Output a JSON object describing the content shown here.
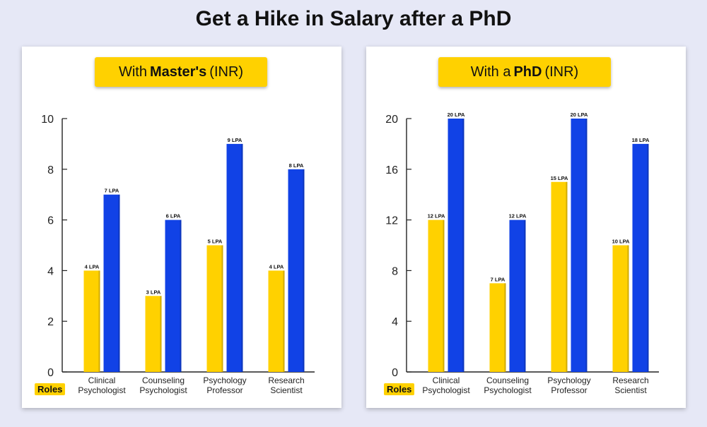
{
  "title": "Get a Hike in Salary after a PhD",
  "colors": {
    "masters": "#ffd100",
    "phd": "#1142e6",
    "badge": "#ffd100"
  },
  "chart_data": [
    {
      "type": "bar",
      "title_prefix": "With",
      "title_bold": "Master's",
      "title_suffix": "(INR)",
      "roles_label": "Roles",
      "categories": [
        [
          "Clinical",
          "Psychologist"
        ],
        [
          "Counseling",
          "Psychologist"
        ],
        [
          "Psychology",
          "Professor"
        ],
        [
          "Research",
          "Scientist"
        ]
      ],
      "series": [
        {
          "values": [
            4,
            3,
            5,
            4
          ],
          "labels": [
            "4 LPA",
            "3 LPA",
            "5 LPA",
            "4 LPA"
          ],
          "color": "#ffd100"
        },
        {
          "values": [
            7,
            6,
            9,
            8
          ],
          "labels": [
            "7 LPA",
            "6 LPA",
            "9 LPA",
            "8 LPA"
          ],
          "color": "#1142e6"
        }
      ],
      "ylim": [
        0,
        10
      ],
      "yticks": [
        0,
        2,
        4,
        6,
        8,
        10
      ],
      "grid": false
    },
    {
      "type": "bar",
      "title_prefix": "With a",
      "title_bold": "PhD",
      "title_suffix": "(INR)",
      "roles_label": "Roles",
      "categories": [
        [
          "Clinical",
          "Psychologist"
        ],
        [
          "Counseling",
          "Psychologist"
        ],
        [
          "Psychology",
          "Professor"
        ],
        [
          "Research",
          "Scientist"
        ]
      ],
      "series": [
        {
          "values": [
            12,
            7,
            15,
            10
          ],
          "labels": [
            "12 LPA",
            "7 LPA",
            "15 LPA",
            "10 LPA"
          ],
          "color": "#ffd100"
        },
        {
          "values": [
            20,
            12,
            20,
            18
          ],
          "labels": [
            "20 LPA",
            "12 LPA",
            "20 LPA",
            "18 LPA"
          ],
          "color": "#1142e6"
        }
      ],
      "ylim": [
        0,
        20
      ],
      "yticks": [
        0,
        4,
        8,
        12,
        16,
        20
      ],
      "grid": false
    }
  ]
}
